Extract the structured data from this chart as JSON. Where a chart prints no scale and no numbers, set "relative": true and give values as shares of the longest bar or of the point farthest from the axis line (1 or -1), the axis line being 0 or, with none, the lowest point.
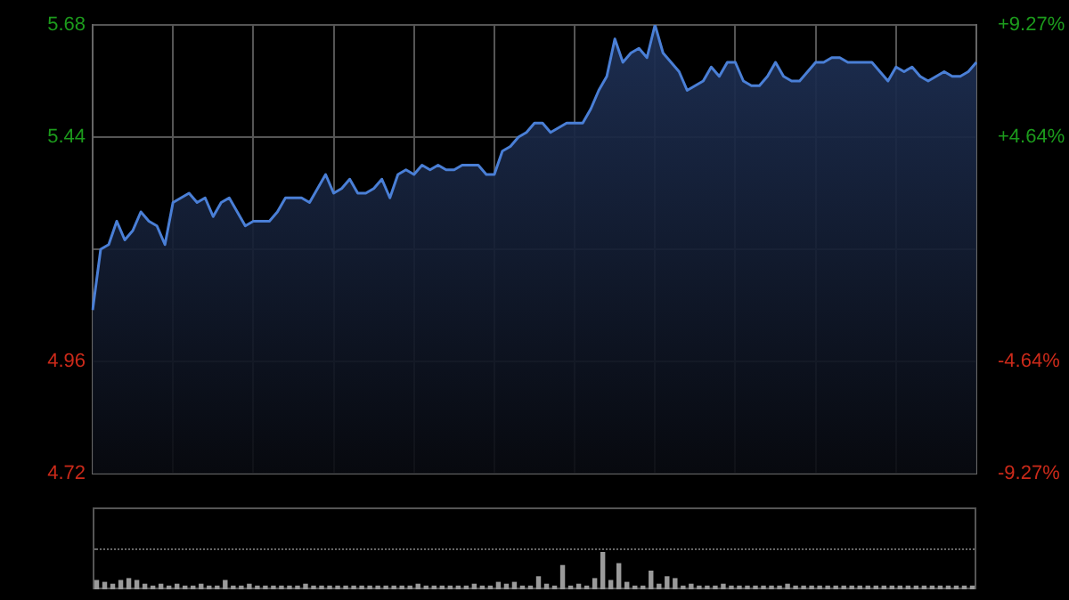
{
  "chart_data": [
    {
      "type": "area",
      "categories": [
        null,
        null,
        null,
        null,
        null,
        null,
        null,
        null,
        null,
        null,
        null,
        null,
        null,
        null,
        null,
        null,
        null,
        null,
        null,
        null,
        null,
        null,
        null,
        null,
        null,
        null,
        null,
        null,
        null,
        null,
        null,
        null,
        null,
        null,
        null,
        null,
        null,
        null,
        null,
        null,
        null,
        null,
        null,
        null,
        null,
        null,
        null,
        null,
        null,
        null,
        null,
        null,
        null,
        null,
        null,
        null,
        null,
        null,
        null,
        null,
        null,
        null,
        null,
        null,
        null,
        null,
        null,
        null,
        null,
        null,
        null,
        null,
        null,
        null,
        null,
        null,
        null,
        null,
        null,
        null,
        null,
        null,
        null,
        null,
        null,
        null,
        null,
        null,
        null,
        null,
        null,
        null,
        null,
        null,
        null,
        null,
        null,
        null,
        null,
        null,
        null,
        null,
        null,
        null,
        null,
        null,
        null,
        null,
        null,
        null,
        null
      ],
      "series": [
        {
          "color": "#4a7fd6",
          "values": [
            5.07,
            5.2,
            5.21,
            5.26,
            5.22,
            5.24,
            5.28,
            5.26,
            5.25,
            5.21,
            5.3,
            5.31,
            5.32,
            5.3,
            5.31,
            5.27,
            5.3,
            5.31,
            5.28,
            5.25,
            5.26,
            5.26,
            5.26,
            5.28,
            5.31,
            5.31,
            5.31,
            5.3,
            5.33,
            5.36,
            5.32,
            5.33,
            5.35,
            5.32,
            5.32,
            5.33,
            5.35,
            5.31,
            5.36,
            5.37,
            5.36,
            5.38,
            5.37,
            5.38,
            5.37,
            5.37,
            5.38,
            5.38,
            5.38,
            5.36,
            5.36,
            5.41,
            5.42,
            5.44,
            5.45,
            5.47,
            5.47,
            5.45,
            5.46,
            5.47,
            5.47,
            5.47,
            5.5,
            5.54,
            5.57,
            5.65,
            5.6,
            5.62,
            5.63,
            5.61,
            5.68,
            5.62,
            5.6,
            5.58,
            5.54,
            5.55,
            5.56,
            5.59,
            5.57,
            5.6,
            5.6,
            5.56,
            5.55,
            5.55,
            5.57,
            5.6,
            5.57,
            5.56,
            5.56,
            5.58,
            5.6,
            5.6,
            5.61,
            5.61,
            5.6,
            5.6,
            5.6,
            5.6,
            5.58,
            5.56,
            5.59,
            5.58,
            5.59,
            5.57,
            5.56,
            5.57,
            5.58,
            5.57,
            5.57,
            5.58,
            5.6
          ]
        }
      ],
      "ylim": [
        4.72,
        5.68
      ],
      "yticks": [
        4.72,
        4.96,
        {
          "value": 5.2,
          "label": null
        },
        5.44,
        5.68
      ],
      "y2lim": [
        -9.27,
        9.27
      ],
      "y2ticks": [
        {
          "value": -9.27,
          "label": "-9.27%"
        },
        {
          "value": -4.64,
          "label": "-4.64%"
        },
        {
          "value": 0,
          "label": null
        },
        {
          "value": 4.64,
          "label": "+4.64%"
        },
        {
          "value": 9.27,
          "label": "+9.27%"
        }
      ],
      "tick_labels": "y",
      "grid": true,
      "marker": "none"
    },
    {
      "type": "bar",
      "relative": true,
      "categories": [
        null,
        null,
        null,
        null,
        null,
        null,
        null,
        null,
        null,
        null,
        null,
        null,
        null,
        null,
        null,
        null,
        null,
        null,
        null,
        null,
        null,
        null,
        null,
        null,
        null,
        null,
        null,
        null,
        null,
        null,
        null,
        null,
        null,
        null,
        null,
        null,
        null,
        null,
        null,
        null,
        null,
        null,
        null,
        null,
        null,
        null,
        null,
        null,
        null,
        null,
        null,
        null,
        null,
        null,
        null,
        null,
        null,
        null,
        null,
        null,
        null,
        null,
        null,
        null,
        null,
        null,
        null,
        null,
        null,
        null,
        null,
        null,
        null,
        null,
        null,
        null,
        null,
        null,
        null,
        null,
        null,
        null,
        null,
        null,
        null,
        null,
        null,
        null,
        null,
        null,
        null,
        null,
        null,
        null,
        null,
        null,
        null,
        null,
        null,
        null,
        null,
        null,
        null,
        null,
        null,
        null,
        null,
        null,
        null,
        null
      ],
      "values": [
        0.25,
        0.2,
        0.15,
        0.25,
        0.3,
        0.25,
        0.15,
        0.1,
        0.15,
        0.1,
        0.15,
        0.1,
        0.1,
        0.15,
        0.1,
        0.1,
        0.25,
        0.1,
        0.1,
        0.15,
        0.1,
        0.1,
        0.1,
        0.1,
        0.1,
        0.1,
        0.15,
        0.1,
        0.1,
        0.1,
        0.1,
        0.1,
        0.1,
        0.1,
        0.1,
        0.1,
        0.1,
        0.1,
        0.1,
        0.1,
        0.15,
        0.1,
        0.1,
        0.1,
        0.1,
        0.1,
        0.1,
        0.15,
        0.1,
        0.1,
        0.2,
        0.15,
        0.2,
        0.1,
        0.1,
        0.35,
        0.15,
        0.1,
        0.65,
        0.1,
        0.15,
        0.1,
        0.3,
        1,
        0.25,
        0.7,
        0.2,
        0.1,
        0.1,
        0.5,
        0.15,
        0.35,
        0.3,
        0.1,
        0.15,
        0.1,
        0.1,
        0.1,
        0.15,
        0.1,
        0.1,
        0.1,
        0.1,
        0.1,
        0.1,
        0.1,
        0.15,
        0.1,
        0.1,
        0.1,
        0.1,
        0.1,
        0.1,
        0.1,
        0.1,
        0.1,
        0.1,
        0.1,
        0.1,
        0.1,
        0.1,
        0.1,
        0.1,
        0.1,
        0.1,
        0.1,
        0.1,
        0.1,
        0.1,
        0.1
      ],
      "color": "#9a9a9a"
    }
  ]
}
